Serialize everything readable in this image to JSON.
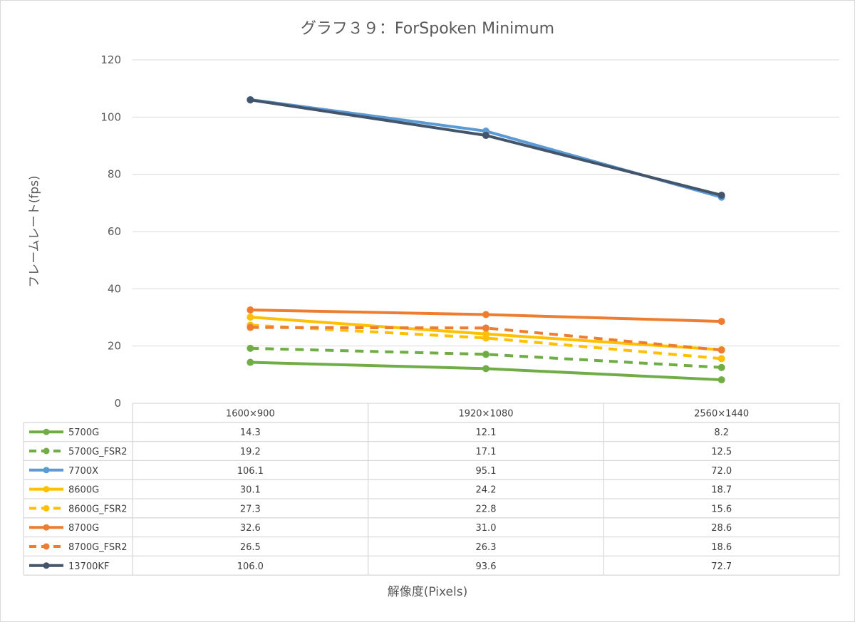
{
  "title": "グラフ３９：ForSpoken Minimum",
  "chart_data": {
    "type": "line",
    "title": "グラフ３９：ForSpoken Minimum",
    "xlabel": "解像度(Pixels)",
    "ylabel": "フレームレート(fps)",
    "ylim": [
      0,
      120
    ],
    "yticks": [
      0,
      20,
      40,
      60,
      80,
      100,
      120
    ],
    "grid": true,
    "legend": "data-table",
    "categories": [
      "1600×900",
      "1920×1080",
      "2560×1440"
    ],
    "series": [
      {
        "name": "5700G",
        "values": [
          14.3,
          12.1,
          8.2
        ],
        "labels": [
          "14.3",
          "12.1",
          "8.2"
        ],
        "color": "#70ad47",
        "dashed": false
      },
      {
        "name": "5700G_FSR2",
        "values": [
          19.2,
          17.1,
          12.5
        ],
        "labels": [
          "19.2",
          "17.1",
          "12.5"
        ],
        "color": "#70ad47",
        "dashed": true
      },
      {
        "name": "7700X",
        "values": [
          106.1,
          95.1,
          72.0
        ],
        "labels": [
          "106.1",
          "95.1",
          "72.0"
        ],
        "color": "#5b9bd5",
        "dashed": false
      },
      {
        "name": "8600G",
        "values": [
          30.1,
          24.2,
          18.7
        ],
        "labels": [
          "30.1",
          "24.2",
          "18.7"
        ],
        "color": "#ffc000",
        "dashed": false
      },
      {
        "name": "8600G_FSR2",
        "values": [
          27.3,
          22.8,
          15.6
        ],
        "labels": [
          "27.3",
          "22.8",
          "15.6"
        ],
        "color": "#ffc000",
        "dashed": true
      },
      {
        "name": "8700G",
        "values": [
          32.6,
          31.0,
          28.6
        ],
        "labels": [
          "32.6",
          "31.0",
          "28.6"
        ],
        "color": "#ed7d31",
        "dashed": false
      },
      {
        "name": "8700G_FSR2",
        "values": [
          26.5,
          26.3,
          18.6
        ],
        "labels": [
          "26.5",
          "26.3",
          "18.6"
        ],
        "color": "#ed7d31",
        "dashed": true
      },
      {
        "name": "13700KF",
        "values": [
          106.0,
          93.6,
          72.7
        ],
        "labels": [
          "106.0",
          "93.6",
          "72.7"
        ],
        "color": "#44546a",
        "dashed": false
      }
    ]
  }
}
